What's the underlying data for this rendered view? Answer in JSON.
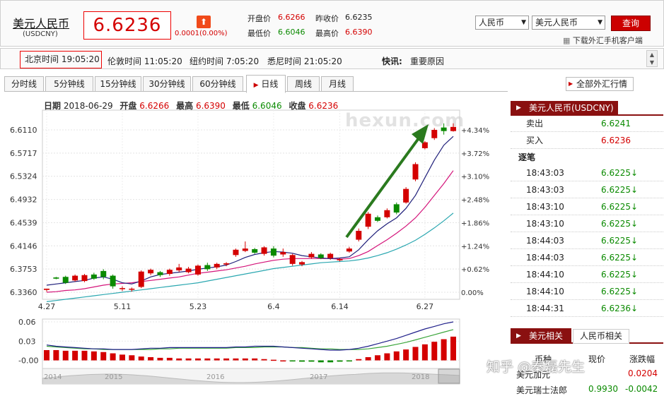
{
  "header": {
    "title": "美元人民币",
    "code": "(USDCNY)",
    "price": "6.6236",
    "change": "0.0001(0.00%)",
    "open_label": "开盘价",
    "open": "6.6266",
    "prev_label": "昨收价",
    "prev": "6.6235",
    "low_label": "最低价",
    "low": "6.6046",
    "high_label": "最高价",
    "high": "6.6390",
    "select1": "人民币",
    "select2": "美元人民币",
    "query": "查询",
    "download": "下载外汇手机客户端"
  },
  "timebar": {
    "beijing": "北京时间 19:05:20",
    "london": "伦敦时间 11:05:20",
    "newyork": "纽约时间 7:05:20",
    "sydney": "悉尼时间 21:05:20",
    "news_label": "快讯:",
    "news": "重要原因"
  },
  "tabs": [
    "分时线",
    "5分钟线",
    "15分钟线",
    "30分钟线",
    "60分钟线",
    "日线",
    "周线",
    "月线"
  ],
  "active_tab": "日线",
  "all_fx": "全部外汇行情",
  "info": {
    "date_label": "日期",
    "date": "2018-06-29",
    "open_label": "开盘",
    "open": "6.6266",
    "high_label": "最高",
    "high": "6.6390",
    "low_label": "最低",
    "low": "6.6046",
    "close_label": "收盘",
    "close": "6.6236"
  },
  "watermark": "hexun.com",
  "colors": {
    "up": "#d40000",
    "down": "#0a8a00",
    "ma5": "#1f1f7a",
    "ma10": "#d4147a",
    "ma20": "#2aa7b0",
    "arrow": "#2a7a1e",
    "header_red": "#8a1010"
  },
  "panel": {
    "title": "美元人民币(USDCNY)",
    "sell_label": "卖出",
    "sell": "6.6241",
    "buy_label": "买入",
    "buy": "6.6236",
    "ticks_label": "逐笔",
    "ticks": [
      {
        "time": "18:43:03",
        "price": "6.6225↓"
      },
      {
        "time": "18:43:03",
        "price": "6.6225↓"
      },
      {
        "time": "18:43:10",
        "price": "6.6225↓"
      },
      {
        "time": "18:43:10",
        "price": "6.6225↓"
      },
      {
        "time": "18:44:03",
        "price": "6.6225↓"
      },
      {
        "time": "18:44:03",
        "price": "6.6225↓"
      },
      {
        "time": "18:44:10",
        "price": "6.6225↓"
      },
      {
        "time": "18:44:10",
        "price": "6.6225↓"
      },
      {
        "time": "18:44:31",
        "price": "6.6236↓"
      }
    ],
    "tab_a": "美元相关",
    "tab_b": "人民币相关",
    "col_a": "币种",
    "col_b": "现价",
    "col_c": "涨跌幅",
    "row1_name": "美元加元",
    "row1_chg": "0.0204",
    "row2_name": "美元瑞士法郎",
    "row2_price": "0.9930",
    "row2_chg": "-0.0042"
  },
  "social_watermark": "知乎 @秦磊先生",
  "chart_data": {
    "type": "candlestick",
    "y_ticks": [
      "6.6110",
      "6.5717",
      "6.5324",
      "6.4932",
      "6.4539",
      "6.4146",
      "6.3753",
      "6.3360"
    ],
    "pct_ticks": [
      "+4.34%",
      "+3.72%",
      "+3.10%",
      "+2.48%",
      "+1.86%",
      "+1.24%",
      "+0.62%",
      "0.00%"
    ],
    "ylim": [
      6.336,
      6.611
    ],
    "x_ticks": [
      "4.27",
      "5.11",
      "5.23",
      "6.4",
      "6.14",
      "6.27"
    ],
    "candles": [
      [
        6.34,
        6.342,
        6.337,
        6.34
      ],
      [
        6.361,
        6.359,
        6.358,
        6.362
      ],
      [
        6.362,
        6.352,
        6.35,
        6.364
      ],
      [
        6.356,
        6.364,
        6.354,
        6.366
      ],
      [
        6.355,
        6.365,
        6.353,
        6.367
      ],
      [
        6.366,
        6.359,
        6.357,
        6.369
      ],
      [
        6.372,
        6.362,
        6.358,
        6.375
      ],
      [
        6.364,
        6.346,
        6.342,
        6.366
      ],
      [
        6.342,
        6.343,
        6.338,
        6.346
      ],
      [
        6.341,
        6.342,
        6.337,
        6.344
      ],
      [
        6.345,
        6.371,
        6.343,
        6.373
      ],
      [
        6.368,
        6.374,
        6.365,
        6.376
      ],
      [
        6.37,
        6.365,
        6.362,
        6.372
      ],
      [
        6.367,
        6.374,
        6.364,
        6.376
      ],
      [
        6.373,
        6.378,
        6.37,
        6.384
      ],
      [
        6.37,
        6.376,
        6.368,
        6.379
      ],
      [
        6.366,
        6.381,
        6.364,
        6.383
      ],
      [
        6.382,
        6.375,
        6.372,
        6.386
      ],
      [
        6.378,
        6.384,
        6.375,
        6.386
      ],
      [
        6.383,
        6.385,
        6.38,
        6.387
      ],
      [
        6.399,
        6.408,
        6.396,
        6.41
      ],
      [
        6.406,
        6.41,
        6.404,
        6.422
      ],
      [
        6.409,
        6.403,
        6.401,
        6.411
      ],
      [
        6.401,
        6.412,
        6.398,
        6.414
      ],
      [
        6.41,
        6.398,
        6.395,
        6.414
      ],
      [
        6.4,
        6.404,
        6.396,
        6.41
      ],
      [
        6.384,
        6.399,
        6.381,
        6.401
      ],
      [
        6.383,
        6.387,
        6.38,
        6.389
      ],
      [
        6.395,
        6.401,
        6.393,
        6.404
      ],
      [
        6.4,
        6.394,
        6.392,
        6.402
      ],
      [
        6.394,
        6.401,
        6.391,
        6.403
      ],
      [
        6.39,
        6.392,
        6.388,
        6.394
      ],
      [
        6.405,
        6.41,
        6.403,
        6.413
      ],
      [
        6.425,
        6.44,
        6.422,
        6.444
      ],
      [
        6.447,
        6.469,
        6.443,
        6.472
      ],
      [
        6.463,
        6.457,
        6.455,
        6.466
      ],
      [
        6.463,
        6.475,
        6.461,
        6.478
      ],
      [
        6.485,
        6.471,
        6.468,
        6.488
      ],
      [
        6.488,
        6.511,
        6.486,
        6.514
      ],
      [
        6.527,
        6.553,
        6.524,
        6.556
      ],
      [
        6.58,
        6.59,
        6.578,
        6.592
      ],
      [
        6.597,
        6.611,
        6.594,
        6.614
      ],
      [
        6.615,
        6.609,
        6.603,
        6.622
      ],
      [
        6.609,
        6.616,
        6.608,
        6.622
      ]
    ],
    "ma5": [
      6.348,
      6.35,
      6.352,
      6.354,
      6.356,
      6.36,
      6.362,
      6.358,
      6.352,
      6.35,
      6.355,
      6.362,
      6.366,
      6.368,
      6.37,
      6.372,
      6.375,
      6.377,
      6.379,
      6.382,
      6.388,
      6.395,
      6.4,
      6.403,
      6.405,
      6.404,
      6.402,
      6.398,
      6.396,
      6.394,
      6.393,
      6.394,
      6.396,
      6.408,
      6.425,
      6.44,
      6.452,
      6.462,
      6.478,
      6.5,
      6.53,
      6.56,
      6.585,
      6.6
    ],
    "ma10": [
      6.336,
      6.337,
      6.339,
      6.34,
      6.342,
      6.345,
      6.348,
      6.35,
      6.351,
      6.352,
      6.354,
      6.356,
      6.358,
      6.36,
      6.362,
      6.365,
      6.368,
      6.37,
      6.372,
      6.374,
      6.377,
      6.38,
      6.384,
      6.387,
      6.39,
      6.392,
      6.393,
      6.393,
      6.393,
      6.393,
      6.393,
      6.392,
      6.393,
      6.398,
      6.405,
      6.415,
      6.425,
      6.436,
      6.448,
      6.462,
      6.48,
      6.5,
      6.52,
      6.542
    ],
    "ma20": [
      6.32,
      6.322,
      6.324,
      6.326,
      6.328,
      6.33,
      6.332,
      6.334,
      6.336,
      6.338,
      6.34,
      6.342,
      6.344,
      6.346,
      6.348,
      6.35,
      6.352,
      6.355,
      6.358,
      6.361,
      6.364,
      6.367,
      6.37,
      6.373,
      6.376,
      6.378,
      6.38,
      6.382,
      6.384,
      6.386,
      6.387,
      6.388,
      6.389,
      6.391,
      6.394,
      6.398,
      6.403,
      6.409,
      6.416,
      6.424,
      6.434,
      6.445,
      6.457,
      6.47
    ],
    "macd_ticks": [
      "0.06",
      "0.03",
      "-0.00"
    ],
    "macd_ylim": [
      -0.006,
      0.06
    ],
    "macd_hist": [
      0.016,
      0.016,
      0.015,
      0.015,
      0.015,
      0.014,
      0.013,
      0.011,
      0.009,
      0.008,
      0.006,
      0.005,
      0.004,
      0.004,
      0.003,
      0.003,
      0.003,
      0.003,
      0.003,
      0.003,
      0.003,
      0.003,
      0.003,
      0.002,
      0.001,
      0.0,
      -0.001,
      -0.002,
      -0.002,
      -0.003,
      -0.003,
      -0.002,
      -0.001,
      0.002,
      0.005,
      0.008,
      0.011,
      0.014,
      0.017,
      0.021,
      0.025,
      0.029,
      0.033,
      0.037
    ],
    "macd_dif": [
      0.024,
      0.022,
      0.021,
      0.02,
      0.019,
      0.018,
      0.018,
      0.017,
      0.017,
      0.017,
      0.018,
      0.019,
      0.019,
      0.02,
      0.02,
      0.02,
      0.02,
      0.02,
      0.02,
      0.02,
      0.021,
      0.021,
      0.022,
      0.022,
      0.022,
      0.021,
      0.02,
      0.019,
      0.018,
      0.017,
      0.016,
      0.016,
      0.017,
      0.019,
      0.022,
      0.026,
      0.03,
      0.034,
      0.039,
      0.044,
      0.049,
      0.053,
      0.057,
      0.06
    ],
    "macd_dea": [
      0.022,
      0.021,
      0.02,
      0.019,
      0.018,
      0.018,
      0.017,
      0.017,
      0.017,
      0.017,
      0.017,
      0.017,
      0.018,
      0.018,
      0.019,
      0.019,
      0.019,
      0.019,
      0.019,
      0.019,
      0.02,
      0.02,
      0.02,
      0.021,
      0.021,
      0.021,
      0.02,
      0.02,
      0.019,
      0.018,
      0.018,
      0.017,
      0.017,
      0.017,
      0.018,
      0.02,
      0.022,
      0.025,
      0.028,
      0.032,
      0.036,
      0.04,
      0.044,
      0.048
    ],
    "overview_labels": [
      "2014",
      "2015",
      "2016",
      "2017",
      "2018"
    ]
  }
}
